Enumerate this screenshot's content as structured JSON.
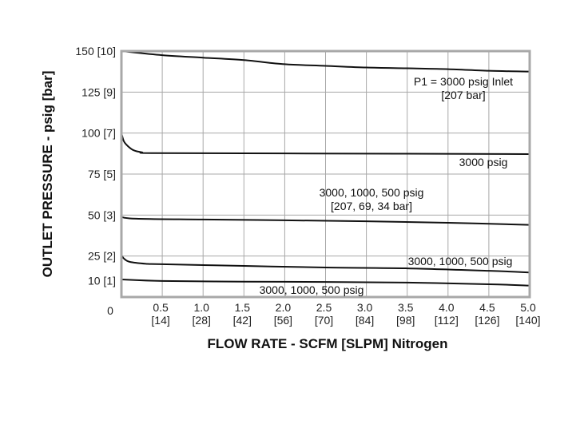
{
  "chart_data": {
    "type": "line",
    "xlabel": "FLOW RATE - SCFM [SLPM] Nitrogen",
    "ylabel": "OUTLET PRESSURE - psig [bar]",
    "xlim": [
      0,
      5.0
    ],
    "ylim": [
      0,
      150
    ],
    "grid": true,
    "x_ticks": [
      {
        "value": 0.5,
        "label": "0.5",
        "sub": "[14]"
      },
      {
        "value": 1.0,
        "label": "1.0",
        "sub": "[28]"
      },
      {
        "value": 1.5,
        "label": "1.5",
        "sub": "[42]"
      },
      {
        "value": 2.0,
        "label": "2.0",
        "sub": "[56]"
      },
      {
        "value": 2.5,
        "label": "2.5",
        "sub": "[70]"
      },
      {
        "value": 3.0,
        "label": "3.0",
        "sub": "[84]"
      },
      {
        "value": 3.5,
        "label": "3.5",
        "sub": "[98]"
      },
      {
        "value": 4.0,
        "label": "4.0",
        "sub": "[112]"
      },
      {
        "value": 4.5,
        "label": "4.5",
        "sub": "[126]"
      },
      {
        "value": 5.0,
        "label": "5.0",
        "sub": "[140]"
      }
    ],
    "x_origin_label": "0",
    "y_ticks": [
      {
        "value": 150,
        "label": "150 [10]"
      },
      {
        "value": 125,
        "label": "125 [9]"
      },
      {
        "value": 100,
        "label": "100 [7]"
      },
      {
        "value": 75,
        "label": "75 [5]"
      },
      {
        "value": 50,
        "label": "50 [3]"
      },
      {
        "value": 25,
        "label": "25 [2]"
      },
      {
        "value": 10,
        "label": "10 [1]"
      }
    ],
    "series": [
      {
        "points": [
          [
            0,
            150
          ],
          [
            0.5,
            147.5
          ],
          [
            1,
            146
          ],
          [
            1.5,
            144.5
          ],
          [
            2,
            142
          ],
          [
            2.5,
            141
          ],
          [
            3,
            140
          ],
          [
            3.5,
            139.5
          ],
          [
            4,
            139
          ],
          [
            4.5,
            138
          ],
          [
            5,
            137.5
          ]
        ]
      },
      {
        "points": [
          [
            0,
            100
          ],
          [
            0.03,
            95
          ],
          [
            0.08,
            92
          ],
          [
            0.15,
            89.5
          ],
          [
            0.25,
            88.3
          ],
          [
            0.4,
            87.8
          ],
          [
            2,
            87.6
          ],
          [
            5,
            87.2
          ]
        ]
      },
      {
        "points": [
          [
            0,
            50.5
          ],
          [
            0.1,
            48
          ],
          [
            1,
            47.3
          ],
          [
            2,
            46.8
          ],
          [
            3,
            46.2
          ],
          [
            4,
            45.3
          ],
          [
            5,
            44
          ]
        ]
      },
      {
        "points": [
          [
            0,
            25.5
          ],
          [
            0.03,
            23.5
          ],
          [
            0.1,
            21.5
          ],
          [
            0.3,
            20.3
          ],
          [
            0.5,
            20
          ],
          [
            1.5,
            19
          ],
          [
            2.5,
            18
          ],
          [
            3.5,
            17.5
          ],
          [
            4.5,
            16
          ],
          [
            5,
            15
          ]
        ]
      },
      {
        "points": [
          [
            0,
            10.7
          ],
          [
            0.5,
            9.8
          ],
          [
            1.5,
            9.4
          ],
          [
            2.5,
            9.2
          ],
          [
            3.5,
            8.8
          ],
          [
            4.5,
            7.8
          ],
          [
            5,
            7
          ]
        ]
      }
    ],
    "annotations": [
      {
        "lines": [
          "P1 = 3000 psig Inlet",
          "[207 bar]"
        ]
      },
      {
        "lines": [
          "3000 psig"
        ]
      },
      {
        "lines": [
          "3000, 1000, 500 psig",
          "[207, 69, 34 bar]"
        ]
      },
      {
        "lines": [
          "3000, 1000, 500 psig"
        ]
      },
      {
        "lines": [
          "3000, 1000, 500 psig"
        ]
      }
    ],
    "colors": {
      "grid": "#a8a8a8",
      "frame": "#a8a8a8",
      "line": "#111111"
    }
  }
}
